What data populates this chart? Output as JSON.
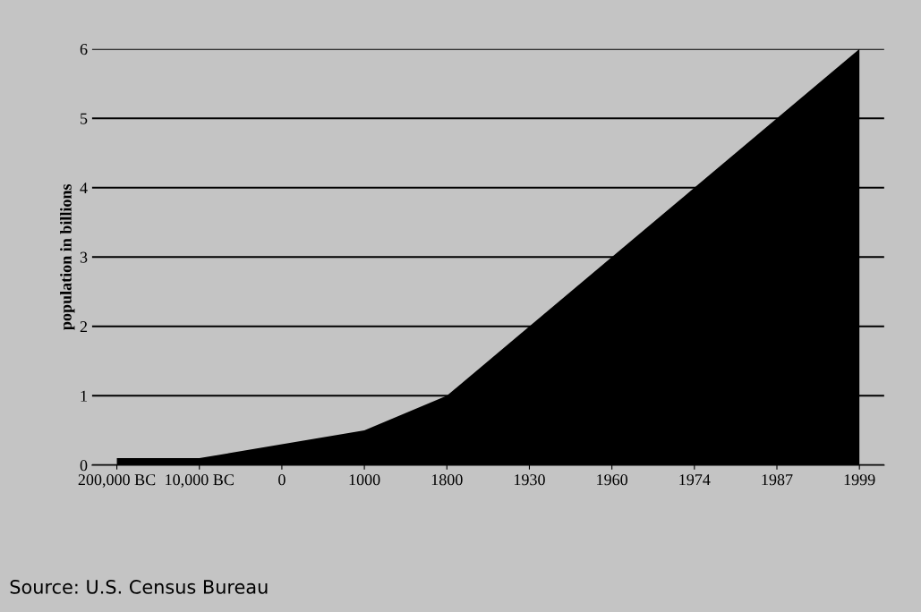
{
  "chart_data": {
    "type": "area",
    "ylabel": "population in billions",
    "categories": [
      "200,000 BC",
      "10,000 BC",
      "0",
      "1000",
      "1800",
      "1930",
      "1960",
      "1974",
      "1987",
      "1999"
    ],
    "values": [
      0.1,
      0.1,
      0.3,
      0.5,
      1.0,
      2.0,
      3.0,
      4.0,
      5.0,
      6.0
    ],
    "color": "#000000",
    "ylim": [
      0,
      6
    ],
    "yticks": [
      0,
      1,
      2,
      3,
      4,
      5,
      6
    ],
    "grid": "y",
    "annotations": [
      "Source: U.S. Census Bureau"
    ]
  }
}
